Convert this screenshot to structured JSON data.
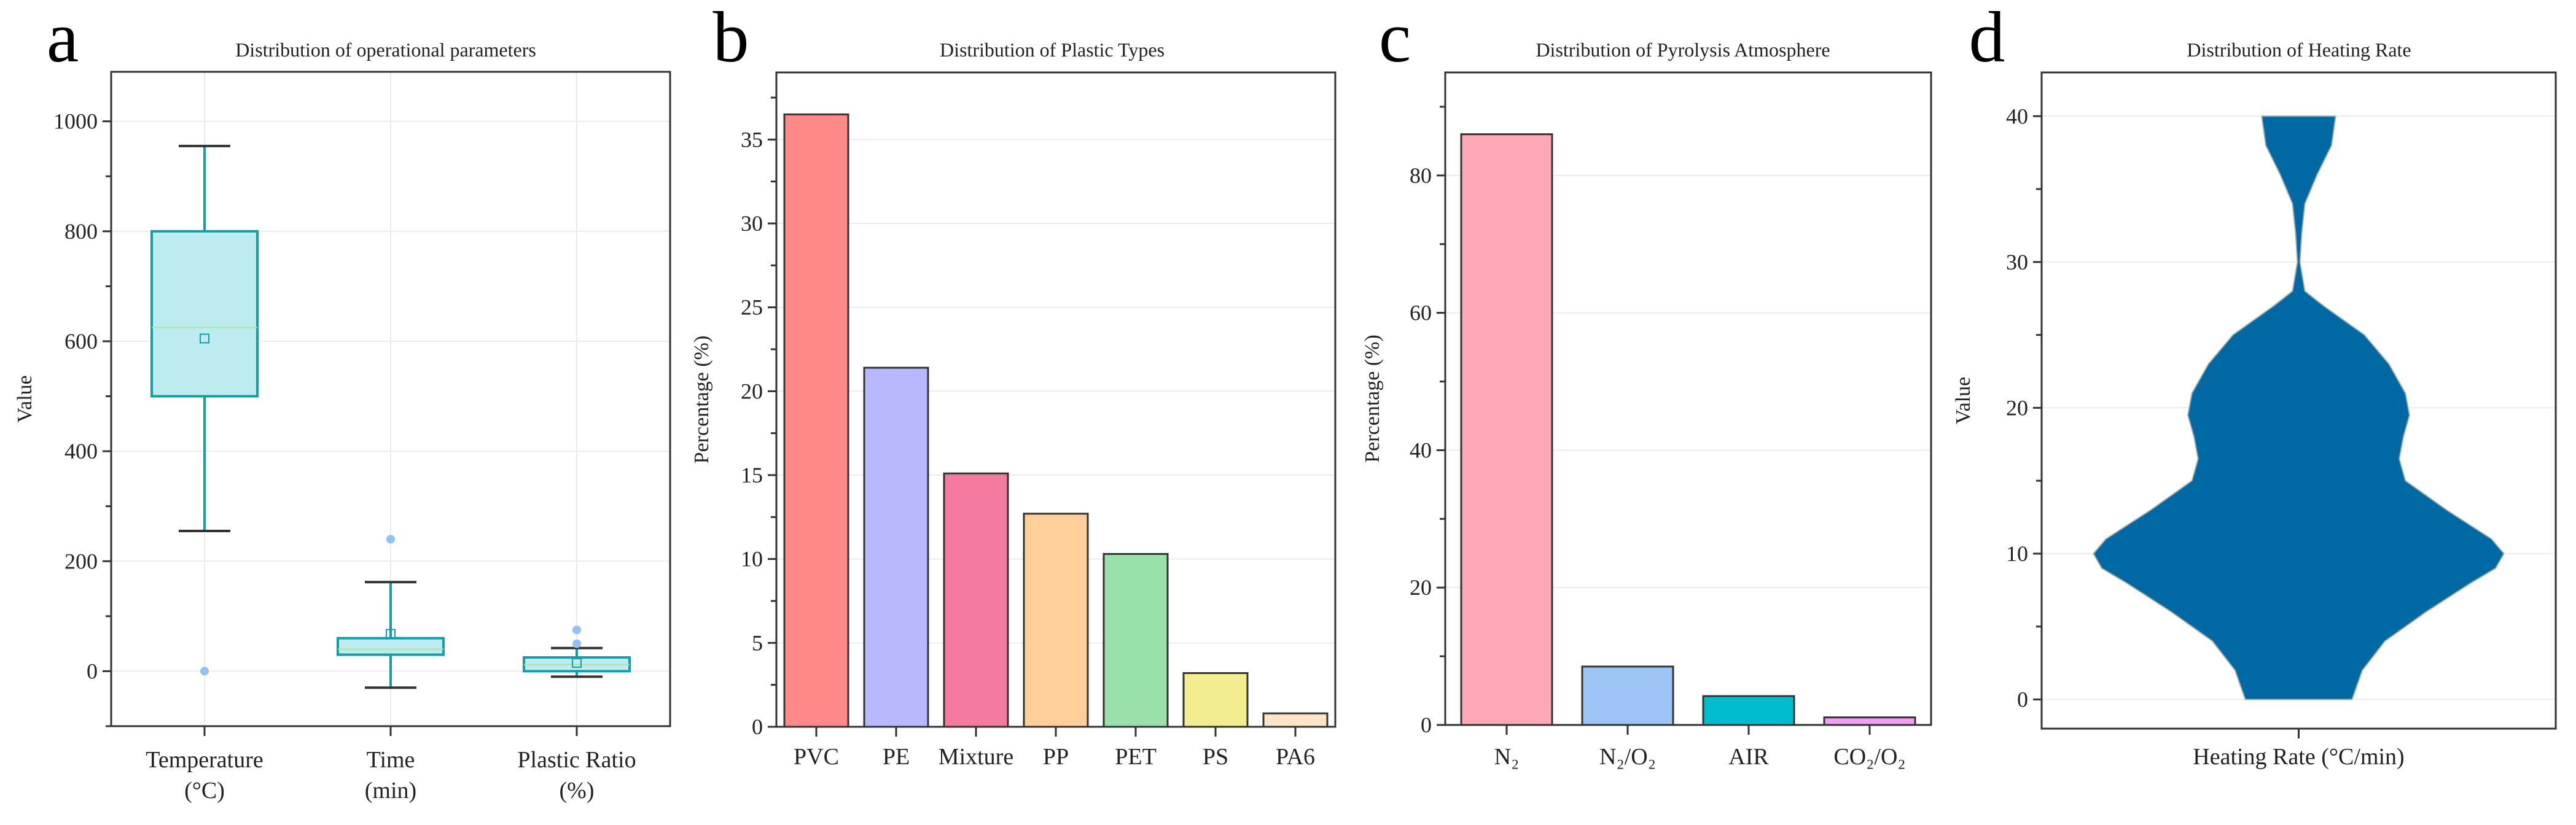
{
  "chart_data": [
    {
      "panel": "a",
      "type": "box",
      "title": "Distribution of operational parameters",
      "ylabel": "Value",
      "xlabel": "",
      "ylim": [
        -100,
        1090
      ],
      "yticks": [
        0,
        200,
        400,
        600,
        800,
        1000
      ],
      "grid": true,
      "categories": [
        [
          "Temperature",
          "(°C)"
        ],
        [
          "Time",
          "(min)"
        ],
        [
          "Plastic Ratio",
          "(%)"
        ]
      ],
      "boxes": [
        {
          "whisker_low": 255,
          "q1": 500,
          "median": 625,
          "q3": 800,
          "whisker_high": 955,
          "mean": 605,
          "outliers": [
            0
          ]
        },
        {
          "whisker_low": -30,
          "q1": 30,
          "median": 40,
          "q3": 60,
          "whisker_high": 162,
          "mean": 68,
          "outliers": [
            240
          ]
        },
        {
          "whisker_low": -10,
          "q1": 0,
          "median": 12,
          "q3": 25,
          "whisker_high": 42,
          "mean": 15,
          "outliers": [
            50,
            75
          ]
        }
      ],
      "colors": {
        "box_fill": "#bdebf0",
        "box_edge": "#129ea8",
        "median": "#a8e6a0",
        "outlier": "#90c2f5",
        "cap": "#333333"
      }
    },
    {
      "panel": "b",
      "type": "bar",
      "title": "Distribution of Plastic Types",
      "ylabel": "Percentage (%)",
      "xlabel": "",
      "ylim": [
        0,
        39
      ],
      "yticks": [
        0,
        5,
        10,
        15,
        20,
        25,
        30,
        35
      ],
      "grid": true,
      "categories": [
        "PVC",
        "PE",
        "Mixture",
        "PP",
        "PET",
        "PS",
        "PA6"
      ],
      "values": [
        36.5,
        21.4,
        15.1,
        12.7,
        10.3,
        3.2,
        0.8
      ],
      "colors": [
        "#ff8888",
        "#b8b8ff",
        "#f57a9f",
        "#ffcf99",
        "#99e0ab",
        "#f2ee8f",
        "#ffe4c7"
      ]
    },
    {
      "panel": "c",
      "type": "bar",
      "title": "Distribution of Pyrolysis Atmosphere",
      "ylabel": "Percentage (%)",
      "xlabel": "",
      "ylim": [
        0,
        95
      ],
      "yticks": [
        0,
        20,
        40,
        60,
        80
      ],
      "grid": true,
      "categories": [
        "N₂",
        "N₂/O₂",
        "AIR",
        "CO₂/O₂"
      ],
      "values": [
        86,
        8.5,
        4.2,
        1.1
      ],
      "colors": [
        "#ffa8b5",
        "#9cc5f5",
        "#00bccf",
        "#f0a0f0"
      ]
    },
    {
      "panel": "d",
      "type": "violin",
      "title": "Distribution of Heating Rate",
      "ylabel": "Value",
      "xlabel": "Heating Rate (°C/min)",
      "ylim": [
        -2,
        43
      ],
      "yticks": [
        0,
        10,
        20,
        30,
        40
      ],
      "grid": true,
      "color": "#0069a3",
      "density_profile": [
        [
          0,
          0.26
        ],
        [
          2,
          0.31
        ],
        [
          4,
          0.42
        ],
        [
          6,
          0.62
        ],
        [
          8,
          0.84
        ],
        [
          9,
          0.96
        ],
        [
          10,
          1.0
        ],
        [
          11,
          0.94
        ],
        [
          13,
          0.72
        ],
        [
          15,
          0.52
        ],
        [
          16.5,
          0.49
        ],
        [
          18,
          0.51
        ],
        [
          19.5,
          0.54
        ],
        [
          21,
          0.52
        ],
        [
          23,
          0.44
        ],
        [
          25,
          0.32
        ],
        [
          27,
          0.12
        ],
        [
          28,
          0.03
        ],
        [
          30,
          0.006
        ],
        [
          32,
          0.015
        ],
        [
          34,
          0.03
        ],
        [
          36,
          0.09
        ],
        [
          38,
          0.16
        ],
        [
          40,
          0.18
        ]
      ]
    }
  ]
}
